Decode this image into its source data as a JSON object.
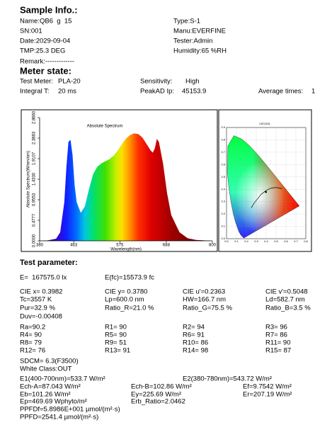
{
  "sample_info": {
    "title": "Sample Info.:",
    "rows": [
      [
        "Name:QB6  g  15",
        "Type:S-1"
      ],
      [
        "SN:001",
        "Manu:EVERFINE"
      ],
      [
        "Date:2029-09-04",
        "Tester:Admin"
      ],
      [
        "TMP:25.3 DEG",
        "Humidity:65 %RH"
      ],
      [
        "Remark:-------------"
      ]
    ]
  },
  "meter_state": {
    "title": "Meter state:",
    "rows": [
      [
        "Test Meter:",
        "PLA-20",
        "Sensitivity:",
        "High"
      ],
      [
        "Integral T:",
        "20 ms",
        "PeakAD Ip:",
        "45153.9",
        "Average times:",
        "1"
      ]
    ]
  },
  "chart_data": [
    {
      "type": "area",
      "title": "Absolute Spectrum",
      "x_label": "Wavelength(nm)",
      "y_label": "Absolute Spectrum(W/nm/nm)",
      "x": [
        380,
        400,
        420,
        430,
        440,
        445,
        450,
        455,
        460,
        465,
        470,
        480,
        490,
        500,
        510,
        520,
        530,
        540,
        550,
        560,
        570,
        580,
        590,
        600,
        610,
        620,
        630,
        640,
        650,
        655,
        660,
        665,
        670,
        680,
        690,
        700,
        720,
        740,
        760,
        780,
        800
      ],
      "values": [
        0,
        0.01,
        0.05,
        0.2,
        0.9,
        1.7,
        2.3,
        2.35,
        2.0,
        1.3,
        0.9,
        0.65,
        0.8,
        1.2,
        1.55,
        1.72,
        1.8,
        1.85,
        1.9,
        1.98,
        2.1,
        2.25,
        2.38,
        2.46,
        2.5,
        2.48,
        2.4,
        2.25,
        2.1,
        2.05,
        2.15,
        2.37,
        2.3,
        1.8,
        1.1,
        0.6,
        0.2,
        0.06,
        0.02,
        0.01,
        0
      ],
      "xlim": [
        380,
        800
      ],
      "xticks": [
        380,
        463,
        575,
        688,
        800
      ],
      "ylim": [
        0,
        2.866
      ],
      "yticks": [
        {
          "value": 0,
          "label": "0.0000"
        },
        {
          "value": 0.4777,
          "label": "0.4777"
        },
        {
          "value": 0.9553,
          "label": "0.9553"
        },
        {
          "value": 1.433,
          "label": "1.4330"
        },
        {
          "value": 1.9107,
          "label": "1.9107"
        },
        {
          "value": 2.3883,
          "label": "2.3883"
        },
        {
          "value": 2.866,
          "label": "2.8660"
        }
      ]
    },
    {
      "type": "scatter",
      "title": "CIE1931",
      "x": [
        0.3982
      ],
      "values": [
        0.378
      ],
      "color": "#000000",
      "xlim": [
        0,
        0.8
      ],
      "ylim": [
        0,
        0.9
      ],
      "xticks": [
        {
          "value": 0,
          "label": "0.0"
        },
        0.1,
        0.2,
        0.3,
        0.4,
        0.5,
        0.6,
        0.7,
        0.8
      ],
      "yticks": [
        {
          "value": 0,
          "label": "0.0"
        },
        0.1,
        0.2,
        0.3,
        0.4,
        0.5,
        0.6,
        0.7,
        0.8,
        0.9
      ]
    }
  ],
  "test_parameter": {
    "title": "Test parameter:",
    "rows": [
      [
        "E=  167575.0 lx",
        "E(fc)=15573.9 fc"
      ],
      [
        "CIE x= 0.3982",
        "CIE y= 0.3780",
        "CIE u'=0.2363",
        "CIE v'=0.5048"
      ],
      [
        "Tc=3557 K",
        "Lp=600.0 nm",
        "HW=166.7 nm",
        "Ld=582.7 nm"
      ],
      [
        "Pur=32.9 %",
        "Ratio_R=21.0 %",
        "Ratio_G=75.5 %",
        "Ratio_B=3.5 %"
      ],
      [
        "Duv=-0.00408"
      ],
      [
        "Ra=90.2",
        "R1= 90",
        "R2= 94",
        "R3= 96"
      ],
      [
        "R4= 90",
        "R5= 90",
        "R6= 91",
        "R7= 86"
      ],
      [
        "R8= 79",
        "R9= 51",
        "R10= 86",
        "R11= 90"
      ],
      [
        "R12= 76",
        "R13= 91",
        "R14= 98",
        "R15= 87"
      ],
      [
        "SDCM= 6.3(F3500)"
      ],
      [
        "White Class:OUT"
      ],
      [
        "E1(400-700nm)=533.7 W/m²",
        "E2(380-780nm)=543.72 W/m²"
      ],
      [
        "Ech-A=87.043 W/m²",
        "Ech-B=102.86 W/m²",
        "Ef=9.7542 W/m²"
      ],
      [
        "Eb=101.26 W/m²",
        "Ey=225.69 W/m²",
        "Er=207.19 W/m²"
      ],
      [
        "Ep=469.69 Wphyto/m²",
        "Erb_Ratio=2.0462"
      ],
      [
        "PPFDf=5.8986E+001 µmol/(m²·s)"
      ],
      [
        "PPFD=2541.4 µmol/(m²·s)"
      ]
    ]
  }
}
